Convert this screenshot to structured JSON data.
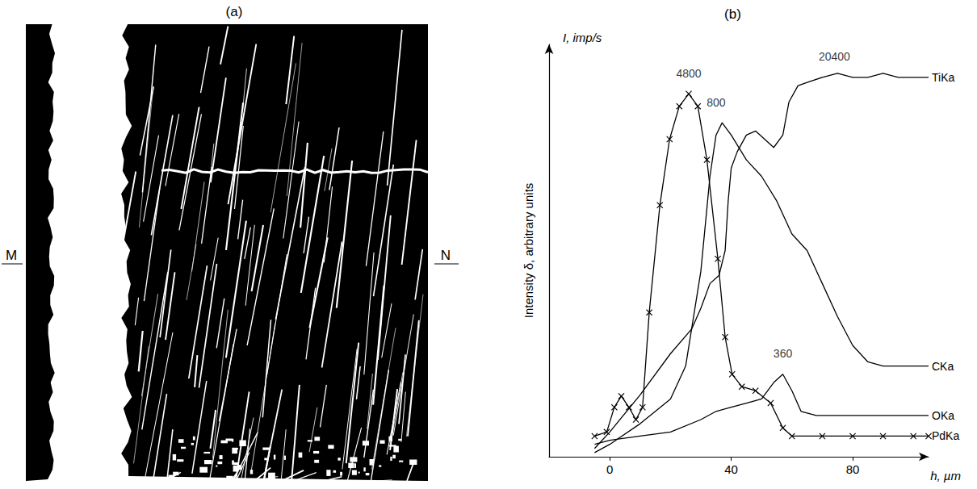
{
  "image_panel": {
    "label": "(a)",
    "left_marker": "M",
    "right_marker": "N"
  },
  "chart_data": {
    "type": "line",
    "panel_label": "(b)",
    "x_label": "h, µm",
    "y_label": "Intensity δ, arbitrary units",
    "y_label_top": "I, imp/s",
    "xlim": [
      -20,
      105
    ],
    "xticks": [
      0,
      40,
      80
    ],
    "ylim": [
      0,
      100
    ],
    "tick_labels": "x",
    "grid": false,
    "series": [
      {
        "name": "TiKa",
        "color": "#000000",
        "line_style": "solid",
        "x": [
          -5,
          0,
          10,
          20,
          27,
          30,
          33,
          36,
          38,
          39,
          40,
          42,
          45,
          48,
          51,
          54,
          57,
          59,
          62,
          66,
          70,
          75,
          80,
          85,
          90,
          95,
          100,
          105
        ],
        "values": [
          2,
          6,
          15,
          25,
          31,
          36,
          42,
          44,
          50,
          62,
          70,
          74,
          78,
          79,
          77,
          75,
          78,
          86,
          90,
          91,
          92,
          93,
          92,
          92,
          93,
          92,
          92,
          92
        ]
      },
      {
        "name": "CKa",
        "color": "#000000",
        "line_style": "solid",
        "x": [
          -5,
          0,
          10,
          20,
          25,
          30,
          33,
          35,
          37,
          40,
          45,
          50,
          55,
          60,
          65,
          70,
          75,
          80,
          85,
          90,
          95,
          105
        ],
        "values": [
          1,
          3,
          8,
          14,
          22,
          45,
          68,
          78,
          81,
          78,
          72,
          68,
          62,
          54,
          50,
          42,
          34,
          27,
          23,
          22,
          22,
          22
        ]
      },
      {
        "name": "OKa",
        "color": "#000000",
        "line_style": "solid",
        "x": [
          -5,
          0,
          10,
          20,
          30,
          35,
          40,
          45,
          50,
          54,
          57,
          60,
          63,
          68,
          80,
          100,
          105
        ],
        "values": [
          3,
          4,
          5,
          6,
          9,
          11,
          12,
          13,
          14,
          18,
          20,
          16,
          11,
          10,
          10,
          10,
          10
        ]
      },
      {
        "name": "PdKa",
        "color": "#000000",
        "line_style": "solid",
        "marker": "x",
        "x": [
          -5,
          -1,
          1.5,
          3.8,
          6.3,
          8.6,
          10.8,
          13,
          16.5,
          19.7,
          22.9,
          26,
          29,
          32,
          35.6,
          38,
          40.3,
          43.5,
          48,
          53,
          57,
          60,
          70,
          80,
          90,
          100,
          105
        ],
        "values": [
          5,
          6,
          12,
          14.7,
          12,
          9,
          12,
          35,
          61,
          77,
          85,
          88,
          85,
          72,
          48,
          29,
          20,
          17,
          16,
          13,
          7,
          5,
          5,
          5,
          5,
          5,
          5
        ]
      }
    ],
    "annotations": [
      {
        "text": "4800",
        "x": 26,
        "y": 93
      },
      {
        "text": "800",
        "x": 35,
        "y": 86
      },
      {
        "text": "360",
        "x": 57,
        "y": 25
      },
      {
        "text": "20400",
        "x": 74,
        "y": 97
      }
    ]
  }
}
